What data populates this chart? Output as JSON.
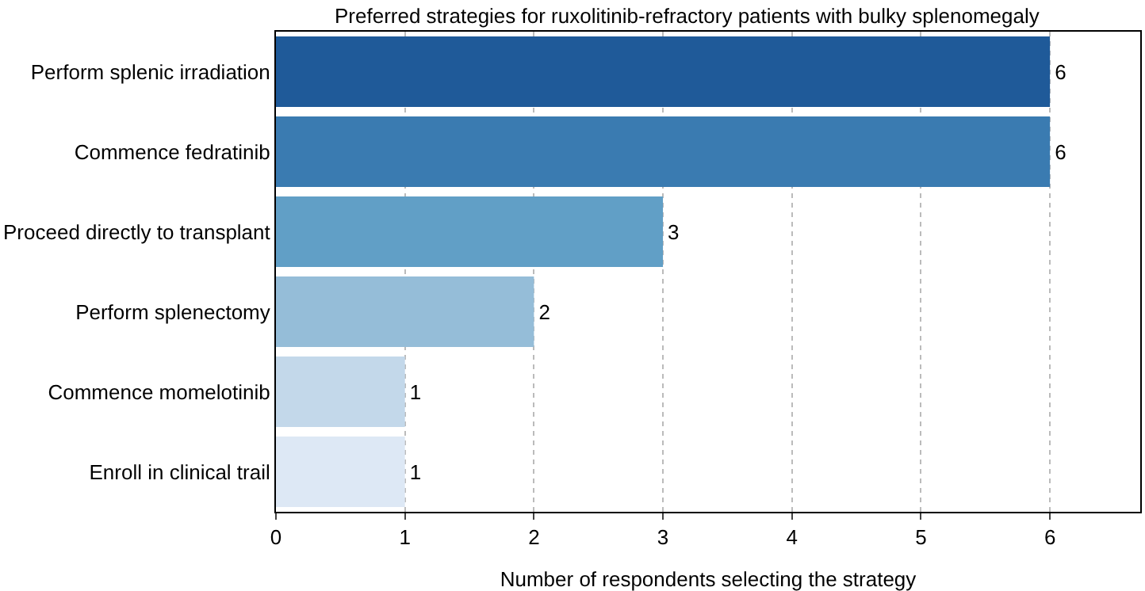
{
  "chart_data": {
    "type": "bar",
    "orientation": "horizontal",
    "title": "Preferred strategies for ruxolitinib-refractory patients with bulky splenomegaly",
    "xlabel": "Number of respondents selecting the strategy",
    "categories": [
      "Perform splenic irradiation",
      "Commence fedratinib",
      "Proceed directly to transplant",
      "Perform splenectomy",
      "Commence momelotinib",
      "Enroll in clinical trail"
    ],
    "values": [
      6,
      6,
      3,
      2,
      1,
      1
    ],
    "colors": [
      "#1f5a99",
      "#3a7bb1",
      "#619fc6",
      "#95bdd8",
      "#c3d8ea",
      "#dde8f5"
    ],
    "xlim": [
      0,
      6.7
    ],
    "xticks": [
      0,
      1,
      2,
      3,
      4,
      5,
      6
    ],
    "grid": "x",
    "data_labels": true
  }
}
